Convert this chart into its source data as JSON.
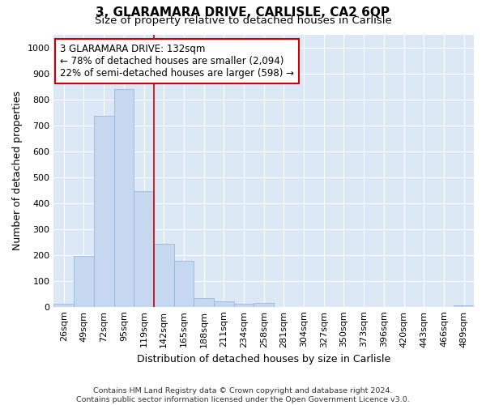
{
  "title": "3, GLARAMARA DRIVE, CARLISLE, CA2 6QP",
  "subtitle": "Size of property relative to detached houses in Carlisle",
  "xlabel": "Distribution of detached houses by size in Carlisle",
  "ylabel": "Number of detached properties",
  "footer_line1": "Contains HM Land Registry data © Crown copyright and database right 2024.",
  "footer_line2": "Contains public sector information licensed under the Open Government Licence v3.0.",
  "categories": [
    "26sqm",
    "49sqm",
    "72sqm",
    "95sqm",
    "119sqm",
    "142sqm",
    "165sqm",
    "188sqm",
    "211sqm",
    "234sqm",
    "258sqm",
    "281sqm",
    "304sqm",
    "327sqm",
    "350sqm",
    "373sqm",
    "396sqm",
    "420sqm",
    "443sqm",
    "466sqm",
    "489sqm"
  ],
  "values": [
    10,
    195,
    735,
    838,
    447,
    243,
    178,
    33,
    22,
    13,
    14,
    0,
    0,
    0,
    0,
    0,
    0,
    0,
    0,
    0,
    5
  ],
  "bar_color": "#c5d8f0",
  "bar_edge_color": "#8ab4d8",
  "property_line_color": "#cc0000",
  "annotation_line1": "3 GLARAMARA DRIVE: 132sqm",
  "annotation_line2": "← 78% of detached houses are smaller (2,094)",
  "annotation_line3": "22% of semi-detached houses are larger (598) →",
  "ylim": [
    0,
    1050
  ],
  "yticks": [
    0,
    100,
    200,
    300,
    400,
    500,
    600,
    700,
    800,
    900,
    1000
  ],
  "plot_bg_color": "#dce8f5",
  "grid_color": "white",
  "title_fontsize": 11,
  "subtitle_fontsize": 9.5,
  "tick_fontsize": 8,
  "ylabel_fontsize": 9,
  "xlabel_fontsize": 9,
  "annotation_fontsize": 8.5,
  "footer_fontsize": 6.8
}
